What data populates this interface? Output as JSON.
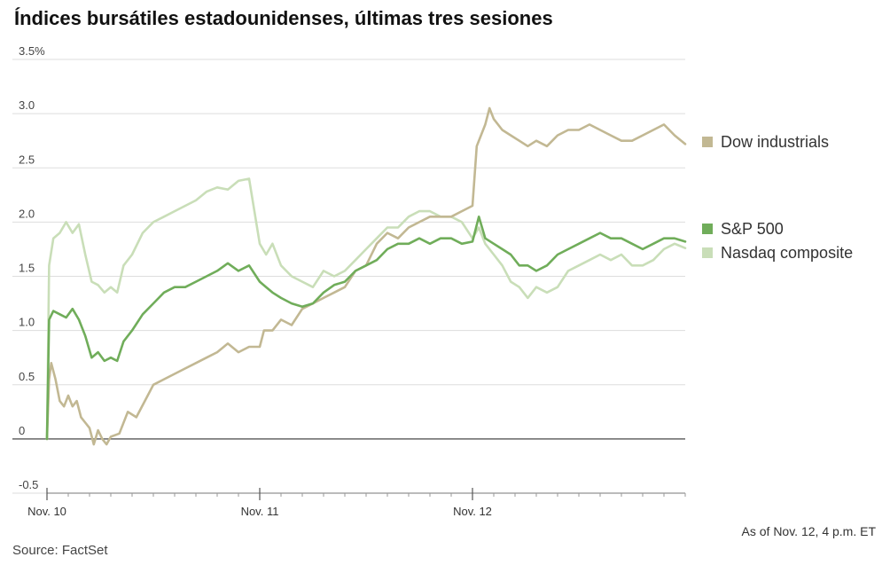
{
  "title": "Índices bursátiles estadounidenses, últimas tres sesiones",
  "footnote": "As of Nov. 12, 4 p.m. ET",
  "source": "Source: FactSet",
  "chart_data": {
    "type": "line",
    "title": "Índices bursátiles estadounidenses, últimas tres sesiones",
    "xlabel": "",
    "ylabel": "",
    "x_tick_labels": [
      "Nov. 10",
      "Nov. 11",
      "Nov. 12"
    ],
    "x_tick_positions": [
      0,
      1,
      2
    ],
    "xlim": [
      0,
      3
    ],
    "ylim": [
      -0.5,
      3.5
    ],
    "y_ticks": [
      -0.5,
      0,
      0.5,
      1.0,
      1.5,
      2.0,
      2.5,
      3.0,
      3.5
    ],
    "y_tick_labels": [
      "-0.5",
      "0",
      "0.5",
      "1.0",
      "1.5",
      "2.0",
      "2.5",
      "3.0",
      "3.5%"
    ],
    "grid": true,
    "legend_placement": "right",
    "series": [
      {
        "name": "Dow industrials",
        "color": "#c2b893",
        "points": [
          [
            0,
            0
          ],
          [
            0.01,
            0.55
          ],
          [
            0.02,
            0.7
          ],
          [
            0.04,
            0.55
          ],
          [
            0.06,
            0.35
          ],
          [
            0.08,
            0.3
          ],
          [
            0.1,
            0.4
          ],
          [
            0.12,
            0.3
          ],
          [
            0.14,
            0.35
          ],
          [
            0.16,
            0.2
          ],
          [
            0.18,
            0.15
          ],
          [
            0.2,
            0.1
          ],
          [
            0.22,
            -0.05
          ],
          [
            0.24,
            0.08
          ],
          [
            0.26,
            0.0
          ],
          [
            0.28,
            -0.05
          ],
          [
            0.3,
            0.02
          ],
          [
            0.34,
            0.05
          ],
          [
            0.38,
            0.25
          ],
          [
            0.42,
            0.2
          ],
          [
            0.46,
            0.35
          ],
          [
            0.5,
            0.5
          ],
          [
            0.55,
            0.55
          ],
          [
            0.6,
            0.6
          ],
          [
            0.65,
            0.65
          ],
          [
            0.7,
            0.7
          ],
          [
            0.75,
            0.75
          ],
          [
            0.8,
            0.8
          ],
          [
            0.85,
            0.88
          ],
          [
            0.9,
            0.8
          ],
          [
            0.95,
            0.85
          ],
          [
            1.0,
            0.85
          ],
          [
            1.02,
            1.0
          ],
          [
            1.06,
            1.0
          ],
          [
            1.1,
            1.1
          ],
          [
            1.15,
            1.05
          ],
          [
            1.2,
            1.2
          ],
          [
            1.25,
            1.25
          ],
          [
            1.3,
            1.3
          ],
          [
            1.35,
            1.35
          ],
          [
            1.4,
            1.4
          ],
          [
            1.45,
            1.55
          ],
          [
            1.5,
            1.6
          ],
          [
            1.55,
            1.8
          ],
          [
            1.6,
            1.9
          ],
          [
            1.65,
            1.85
          ],
          [
            1.7,
            1.95
          ],
          [
            1.75,
            2.0
          ],
          [
            1.8,
            2.05
          ],
          [
            1.85,
            2.05
          ],
          [
            1.9,
            2.05
          ],
          [
            1.95,
            2.1
          ],
          [
            2.0,
            2.15
          ],
          [
            2.02,
            2.7
          ],
          [
            2.04,
            2.8
          ],
          [
            2.06,
            2.9
          ],
          [
            2.08,
            3.05
          ],
          [
            2.1,
            2.95
          ],
          [
            2.14,
            2.85
          ],
          [
            2.18,
            2.8
          ],
          [
            2.22,
            2.75
          ],
          [
            2.26,
            2.7
          ],
          [
            2.3,
            2.75
          ],
          [
            2.35,
            2.7
          ],
          [
            2.4,
            2.8
          ],
          [
            2.45,
            2.85
          ],
          [
            2.5,
            2.85
          ],
          [
            2.55,
            2.9
          ],
          [
            2.6,
            2.85
          ],
          [
            2.65,
            2.8
          ],
          [
            2.7,
            2.75
          ],
          [
            2.75,
            2.75
          ],
          [
            2.8,
            2.8
          ],
          [
            2.85,
            2.85
          ],
          [
            2.9,
            2.9
          ],
          [
            2.95,
            2.8
          ],
          [
            3.0,
            2.72
          ]
        ]
      },
      {
        "name": "S&P 500",
        "color": "#70ad5a",
        "points": [
          [
            0,
            0
          ],
          [
            0.01,
            1.1
          ],
          [
            0.03,
            1.18
          ],
          [
            0.06,
            1.15
          ],
          [
            0.09,
            1.12
          ],
          [
            0.12,
            1.2
          ],
          [
            0.15,
            1.1
          ],
          [
            0.18,
            0.95
          ],
          [
            0.21,
            0.75
          ],
          [
            0.24,
            0.8
          ],
          [
            0.27,
            0.72
          ],
          [
            0.3,
            0.75
          ],
          [
            0.33,
            0.72
          ],
          [
            0.36,
            0.9
          ],
          [
            0.4,
            1.0
          ],
          [
            0.45,
            1.15
          ],
          [
            0.5,
            1.25
          ],
          [
            0.55,
            1.35
          ],
          [
            0.6,
            1.4
          ],
          [
            0.65,
            1.4
          ],
          [
            0.7,
            1.45
          ],
          [
            0.75,
            1.5
          ],
          [
            0.8,
            1.55
          ],
          [
            0.85,
            1.62
          ],
          [
            0.9,
            1.55
          ],
          [
            0.95,
            1.6
          ],
          [
            1.0,
            1.45
          ],
          [
            1.03,
            1.4
          ],
          [
            1.06,
            1.35
          ],
          [
            1.1,
            1.3
          ],
          [
            1.15,
            1.25
          ],
          [
            1.2,
            1.22
          ],
          [
            1.25,
            1.25
          ],
          [
            1.3,
            1.35
          ],
          [
            1.35,
            1.42
          ],
          [
            1.4,
            1.45
          ],
          [
            1.45,
            1.55
          ],
          [
            1.5,
            1.6
          ],
          [
            1.55,
            1.65
          ],
          [
            1.6,
            1.75
          ],
          [
            1.65,
            1.8
          ],
          [
            1.7,
            1.8
          ],
          [
            1.75,
            1.85
          ],
          [
            1.8,
            1.8
          ],
          [
            1.85,
            1.85
          ],
          [
            1.9,
            1.85
          ],
          [
            1.95,
            1.8
          ],
          [
            2.0,
            1.82
          ],
          [
            2.03,
            2.05
          ],
          [
            2.06,
            1.85
          ],
          [
            2.1,
            1.8
          ],
          [
            2.14,
            1.75
          ],
          [
            2.18,
            1.7
          ],
          [
            2.22,
            1.6
          ],
          [
            2.26,
            1.6
          ],
          [
            2.3,
            1.55
          ],
          [
            2.35,
            1.6
          ],
          [
            2.4,
            1.7
          ],
          [
            2.45,
            1.75
          ],
          [
            2.5,
            1.8
          ],
          [
            2.55,
            1.85
          ],
          [
            2.6,
            1.9
          ],
          [
            2.65,
            1.85
          ],
          [
            2.7,
            1.85
          ],
          [
            2.75,
            1.8
          ],
          [
            2.8,
            1.75
          ],
          [
            2.85,
            1.8
          ],
          [
            2.9,
            1.85
          ],
          [
            2.95,
            1.85
          ],
          [
            3.0,
            1.82
          ]
        ]
      },
      {
        "name": "Nasdaq composite",
        "color": "#c9deb8",
        "points": [
          [
            0,
            0
          ],
          [
            0.01,
            1.6
          ],
          [
            0.03,
            1.85
          ],
          [
            0.06,
            1.9
          ],
          [
            0.09,
            2.0
          ],
          [
            0.12,
            1.9
          ],
          [
            0.15,
            1.98
          ],
          [
            0.18,
            1.7
          ],
          [
            0.21,
            1.45
          ],
          [
            0.24,
            1.42
          ],
          [
            0.27,
            1.35
          ],
          [
            0.3,
            1.4
          ],
          [
            0.33,
            1.35
          ],
          [
            0.36,
            1.6
          ],
          [
            0.4,
            1.7
          ],
          [
            0.45,
            1.9
          ],
          [
            0.5,
            2.0
          ],
          [
            0.55,
            2.05
          ],
          [
            0.6,
            2.1
          ],
          [
            0.65,
            2.15
          ],
          [
            0.7,
            2.2
          ],
          [
            0.75,
            2.28
          ],
          [
            0.8,
            2.32
          ],
          [
            0.85,
            2.3
          ],
          [
            0.9,
            2.38
          ],
          [
            0.95,
            2.4
          ],
          [
            1.0,
            1.8
          ],
          [
            1.03,
            1.7
          ],
          [
            1.06,
            1.8
          ],
          [
            1.1,
            1.6
          ],
          [
            1.15,
            1.5
          ],
          [
            1.2,
            1.45
          ],
          [
            1.25,
            1.4
          ],
          [
            1.3,
            1.55
          ],
          [
            1.35,
            1.5
          ],
          [
            1.4,
            1.55
          ],
          [
            1.45,
            1.65
          ],
          [
            1.5,
            1.75
          ],
          [
            1.55,
            1.85
          ],
          [
            1.6,
            1.95
          ],
          [
            1.65,
            1.95
          ],
          [
            1.7,
            2.05
          ],
          [
            1.75,
            2.1
          ],
          [
            1.8,
            2.1
          ],
          [
            1.85,
            2.05
          ],
          [
            1.9,
            2.05
          ],
          [
            1.95,
            2.0
          ],
          [
            2.0,
            1.85
          ],
          [
            2.03,
            1.95
          ],
          [
            2.06,
            1.8
          ],
          [
            2.1,
            1.7
          ],
          [
            2.14,
            1.6
          ],
          [
            2.18,
            1.45
          ],
          [
            2.22,
            1.4
          ],
          [
            2.26,
            1.3
          ],
          [
            2.3,
            1.4
          ],
          [
            2.35,
            1.35
          ],
          [
            2.4,
            1.4
          ],
          [
            2.45,
            1.55
          ],
          [
            2.5,
            1.6
          ],
          [
            2.55,
            1.65
          ],
          [
            2.6,
            1.7
          ],
          [
            2.65,
            1.65
          ],
          [
            2.7,
            1.7
          ],
          [
            2.75,
            1.6
          ],
          [
            2.8,
            1.6
          ],
          [
            2.85,
            1.65
          ],
          [
            2.9,
            1.75
          ],
          [
            2.95,
            1.8
          ],
          [
            3.0,
            1.76
          ]
        ]
      }
    ]
  }
}
